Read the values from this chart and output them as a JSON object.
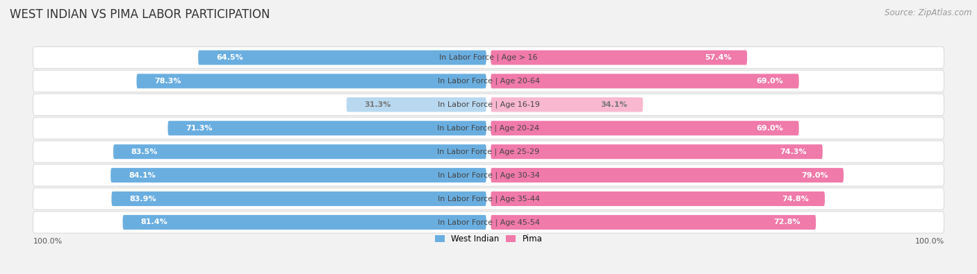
{
  "title": "WEST INDIAN VS PIMA LABOR PARTICIPATION",
  "source": "Source: ZipAtlas.com",
  "categories": [
    "In Labor Force | Age > 16",
    "In Labor Force | Age 20-64",
    "In Labor Force | Age 16-19",
    "In Labor Force | Age 20-24",
    "In Labor Force | Age 25-29",
    "In Labor Force | Age 30-34",
    "In Labor Force | Age 35-44",
    "In Labor Force | Age 45-54"
  ],
  "west_indian": [
    64.5,
    78.3,
    31.3,
    71.3,
    83.5,
    84.1,
    83.9,
    81.4
  ],
  "pima": [
    57.4,
    69.0,
    34.1,
    69.0,
    74.3,
    79.0,
    74.8,
    72.8
  ],
  "west_indian_color": "#6aaee0",
  "west_indian_color_light": "#b8d8f0",
  "pima_color": "#f07aaa",
  "pima_color_light": "#f8b8d0",
  "background_color": "#f2f2f2",
  "row_bg_color": "#ffffff",
  "row_border_color": "#d8d8d8",
  "title_fontsize": 12,
  "source_fontsize": 8.5,
  "label_fontsize": 8,
  "value_fontsize": 8,
  "footer_fontsize": 8,
  "legend_fontsize": 8.5,
  "bar_height": 0.72,
  "legend_labels": [
    "West Indian",
    "Pima"
  ],
  "light_threshold": 50
}
